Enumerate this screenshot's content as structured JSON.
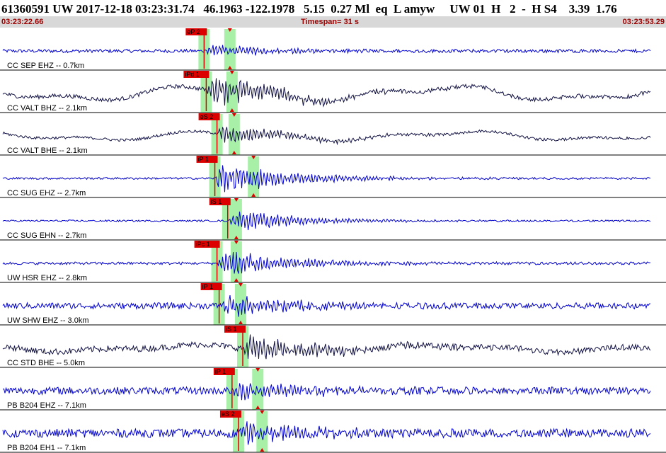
{
  "header": {
    "title": "61360591 UW 2017-12-18 03:23:31.74   46.1963 -122.1978   5.15  0.27 Ml  eq  L amyw     UW 01  H   2  -  H S4    3.39  1.76",
    "start_time": "03:23:22.66",
    "timespan": "Timespan=  31 s",
    "end_time": "03:23:53.29"
  },
  "colors": {
    "trace_blue": "#0000cc",
    "trace_navy": "#111144",
    "pick_red": "#dd0000",
    "pick_window_green": "#a8f0a8",
    "separator": "#000000",
    "header_band": "#d8d8d8"
  },
  "chart_data": {
    "type": "line",
    "title": "61360591 UW 2017-12-18 03:23:31.74   46.1963 -122.1978   5.15  0.27 Ml  eq  L amyw     UW 01  H   2  -  H S4    3.39  1.76",
    "xlabel": "",
    "ylabel": "",
    "x_start": "03:23:22.66",
    "x_end": "03:23:53.29",
    "timespan_s": 31,
    "grid": false,
    "series": [
      {
        "name": "CC SEP EHZ -- 0.7km",
        "color": "trace_blue",
        "pick": "eP 2",
        "p_time": 9.5,
        "s_time": 10.7,
        "s_pick": "",
        "quality": "S",
        "amp": 0.34,
        "noise": 0.1,
        "low": 0.0
      },
      {
        "name": "CC VALT BHZ -- 2.1km",
        "color": "trace_navy",
        "pick": "iPd 1",
        "p_time": 9.6,
        "s_time": 10.8,
        "s_pick": "",
        "quality": "S",
        "amp": 0.95,
        "noise": 0.12,
        "low": 0.55
      },
      {
        "name": "CC VALT BHE -- 2.1km",
        "color": "trace_navy",
        "pick": "eS 2",
        "p_time": 10.1,
        "s_time": 10.9,
        "s_pick": "",
        "quality": "S",
        "amp": 0.55,
        "noise": 0.08,
        "low": 0.35
      },
      {
        "name": "CC SUG EHZ -- 2.7km",
        "color": "trace_blue",
        "pick": "iP 1",
        "p_time": 10.0,
        "s_time": 11.8,
        "s_pick": "",
        "quality": "S",
        "amp": 0.95,
        "noise": 0.06,
        "low": 0.0
      },
      {
        "name": "CC SUG EHN -- 2.7km",
        "color": "trace_blue",
        "pick": "iS 1",
        "p_time": 10.6,
        "s_time": 11.0,
        "s_pick": "",
        "quality": "S",
        "amp": 0.65,
        "noise": 0.05,
        "low": 0.0
      },
      {
        "name": "UW HSR EHZ -- 2.8km",
        "color": "trace_blue",
        "pick": "iPc 1",
        "p_time": 10.1,
        "s_time": 11.0,
        "s_pick": "",
        "quality": "S",
        "amp": 0.8,
        "noise": 0.08,
        "low": 0.0
      },
      {
        "name": "UW SHW EHZ -- 3.0km",
        "color": "trace_blue",
        "pick": "iP 1",
        "p_time": 10.2,
        "s_time": 11.2,
        "s_pick": "",
        "quality": "S",
        "amp": 0.65,
        "noise": 0.18,
        "low": 0.0
      },
      {
        "name": "CC STD BHE -- 5.0km",
        "color": "trace_navy",
        "pick": "iS 1",
        "p_time": 11.3,
        "s_time": 11.3,
        "s_pick": "",
        "quality": "S",
        "amp": 0.85,
        "noise": 0.18,
        "low": 0.25
      },
      {
        "name": "PB B204 EHZ -- 7.1km",
        "color": "trace_blue",
        "pick": "iP 1",
        "p_time": 10.8,
        "s_time": 12.0,
        "s_pick": "",
        "quality": "S",
        "amp": 0.55,
        "noise": 0.22,
        "low": 0.0
      },
      {
        "name": "PB B204 EH1 -- 7.1km",
        "color": "trace_blue",
        "pick": "eS 2",
        "p_time": 11.1,
        "s_time": 12.2,
        "s_pick": "",
        "quality": "S",
        "amp": 0.6,
        "noise": 0.25,
        "low": 0.0
      }
    ]
  }
}
